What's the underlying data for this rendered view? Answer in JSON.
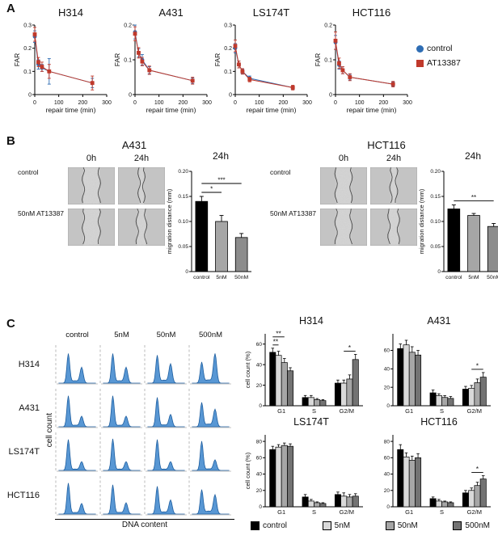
{
  "figure": {
    "panel_a_label": "A",
    "panel_b_label": "B",
    "panel_c_label": "C"
  },
  "panel_a": {
    "xlabel": "repair time (min)",
    "ylabel": "FAR",
    "x": [
      0,
      15,
      30,
      60,
      240
    ],
    "xlim": [
      0,
      300
    ],
    "xticks": [
      0,
      100,
      200,
      300
    ],
    "legend": [
      {
        "label": "control",
        "color": "#2e6db4",
        "marker": "circle"
      },
      {
        "label": "AT13387",
        "color": "#c0392b",
        "marker": "square"
      }
    ],
    "charts": [
      {
        "title": "H314",
        "ylim": [
          0,
          0.3
        ],
        "yticks": [
          0,
          0.1,
          0.2,
          0.3
        ],
        "ytick_labels": [
          "0",
          "0.1",
          "0.2",
          "0.3"
        ],
        "series": [
          {
            "name": "control",
            "values": [
              0.25,
              0.13,
              0.115,
              0.1,
              0.05
            ],
            "err": [
              0.025,
              0.02,
              0.015,
              0.055,
              0.02
            ]
          },
          {
            "name": "AT13387",
            "values": [
              0.26,
              0.14,
              0.12,
              0.1,
              0.05
            ],
            "err": [
              0.03,
              0.02,
              0.02,
              0.03,
              0.03
            ]
          }
        ]
      },
      {
        "title": "A431",
        "ylim": [
          0,
          0.2
        ],
        "yticks": [
          0,
          0.1,
          0.2
        ],
        "ytick_labels": [
          "0",
          "0.1",
          "0.2"
        ],
        "series": [
          {
            "name": "control",
            "values": [
              0.18,
              0.12,
              0.1,
              0.07,
              0.04
            ],
            "err": [
              0.02,
              0.012,
              0.015,
              0.01,
              0.008
            ]
          },
          {
            "name": "AT13387",
            "values": [
              0.175,
              0.12,
              0.095,
              0.07,
              0.04
            ],
            "err": [
              0.02,
              0.015,
              0.012,
              0.012,
              0.01
            ]
          }
        ]
      },
      {
        "title": "LS174T",
        "ylim": [
          0,
          0.3
        ],
        "yticks": [
          0,
          0.1,
          0.2,
          0.3
        ],
        "ytick_labels": [
          "0",
          "0.1",
          "0.2",
          "0.3"
        ],
        "series": [
          {
            "name": "control",
            "values": [
              0.2,
              0.13,
              0.1,
              0.07,
              0.03
            ],
            "err": [
              0.02,
              0.015,
              0.01,
              0.01,
              0.008
            ]
          },
          {
            "name": "AT13387",
            "values": [
              0.21,
              0.13,
              0.1,
              0.065,
              0.03
            ],
            "err": [
              0.025,
              0.015,
              0.012,
              0.01,
              0.01
            ]
          }
        ]
      },
      {
        "title": "HCT116",
        "ylim": [
          0,
          0.2
        ],
        "yticks": [
          0,
          0.1,
          0.2
        ],
        "ytick_labels": [
          "0",
          "0.1",
          "0.2"
        ],
        "series": [
          {
            "name": "control",
            "values": [
              0.15,
              0.085,
              0.07,
              0.05,
              0.03
            ],
            "err": [
              0.02,
              0.012,
              0.01,
              0.008,
              0.006
            ]
          },
          {
            "name": "AT13387",
            "values": [
              0.155,
              0.09,
              0.07,
              0.05,
              0.03
            ],
            "err": [
              0.025,
              0.015,
              0.01,
              0.01,
              0.008
            ]
          }
        ]
      }
    ]
  },
  "panel_b": {
    "bar_colors": [
      "#000000",
      "#a6a6a6",
      "#8c8c8c"
    ],
    "groups": [
      {
        "title": "A431",
        "col_labels": [
          "0h",
          "24h"
        ],
        "row_labels": [
          "control",
          "50nM AT13387"
        ],
        "images": [
          {
            "name": "control-0h",
            "gap": 0.34,
            "seed": 1
          },
          {
            "name": "control-24h",
            "gap": 0.1,
            "seed": 2
          },
          {
            "name": "50nM-0h",
            "gap": 0.34,
            "seed": 3
          },
          {
            "name": "50nM-24h",
            "gap": 0.18,
            "seed": 4
          }
        ],
        "chart": {
          "title": "24h",
          "ylabel": "migration distance (mm)",
          "categories": [
            "control",
            "5nM",
            "50nM"
          ],
          "values": [
            0.14,
            0.1,
            0.068
          ],
          "errors": [
            0.01,
            0.012,
            0.008
          ],
          "ylim": [
            0,
            0.2
          ],
          "yticks": [
            0,
            0.05,
            0.1,
            0.15,
            0.2
          ],
          "ytick_labels": [
            "0",
            "0.05",
            "0.10",
            "0.15",
            "0.20"
          ],
          "sig": [
            {
              "from": 0,
              "to": 1,
              "label": "*"
            },
            {
              "from": 0,
              "to": 2,
              "label": "***"
            }
          ]
        }
      },
      {
        "title": "HCT116",
        "col_labels": [
          "0h",
          "24h"
        ],
        "row_labels": [
          "control",
          "50nM AT13387"
        ],
        "images": [
          {
            "name": "control-0h",
            "gap": 0.32,
            "seed": 5
          },
          {
            "name": "control-24h",
            "gap": 0.12,
            "seed": 6
          },
          {
            "name": "50nM-0h",
            "gap": 0.32,
            "seed": 7
          },
          {
            "name": "50nM-24h",
            "gap": 0.2,
            "seed": 8
          }
        ],
        "chart": {
          "title": "24h",
          "ylabel": "migration distance (mm)",
          "categories": [
            "control",
            "5nM",
            "50nM"
          ],
          "values": [
            0.125,
            0.112,
            0.09
          ],
          "errors": [
            0.008,
            0.004,
            0.006
          ],
          "ylim": [
            0,
            0.2
          ],
          "yticks": [
            0,
            0.05,
            0.1,
            0.15,
            0.2
          ],
          "ytick_labels": [
            "0",
            "0.05",
            "0.10",
            "0.15",
            "0.20"
          ],
          "sig": [
            {
              "from": 0,
              "to": 2,
              "label": "**"
            }
          ]
        }
      }
    ]
  },
  "panel_c": {
    "flow": {
      "col_labels": [
        "control",
        "5nM",
        "50nM",
        "500nM"
      ],
      "row_labels": [
        "H314",
        "A431",
        "LS174T",
        "HCT116"
      ],
      "ylabel": "cell count",
      "xlabel": "DNA content",
      "hist_fill": "#4f91d2",
      "hist_stroke": "#1f5fa0",
      "cells": [
        [
          {
            "g1": 0.85,
            "g2": 0.45
          },
          {
            "g1": 0.85,
            "g2": 0.45
          },
          {
            "g1": 0.8,
            "g2": 0.55
          },
          {
            "g1": 0.6,
            "g2": 0.85
          }
        ],
        [
          {
            "g1": 0.9,
            "g2": 0.3
          },
          {
            "g1": 0.9,
            "g2": 0.3
          },
          {
            "g1": 0.85,
            "g2": 0.35
          },
          {
            "g1": 0.7,
            "g2": 0.5
          }
        ],
        [
          {
            "g1": 0.9,
            "g2": 0.25
          },
          {
            "g1": 0.92,
            "g2": 0.25
          },
          {
            "g1": 0.9,
            "g2": 0.25
          },
          {
            "g1": 0.85,
            "g2": 0.3
          }
        ],
        [
          {
            "g1": 0.9,
            "g2": 0.3
          },
          {
            "g1": 0.85,
            "g2": 0.32
          },
          {
            "g1": 0.8,
            "g2": 0.4
          },
          {
            "g1": 0.7,
            "g2": 0.55
          }
        ]
      ]
    },
    "legend": [
      {
        "label": "control",
        "color": "#000000"
      },
      {
        "label": "5nM",
        "color": "#d9d9d9"
      },
      {
        "label": "50nM",
        "color": "#a6a6a6"
      },
      {
        "label": "500nM",
        "color": "#737373"
      }
    ],
    "charts": [
      {
        "title": "H314",
        "ylabel": "cell count (%)",
        "ylim": [
          0,
          70
        ],
        "yticks": [
          0,
          20,
          40,
          60
        ],
        "categories": [
          "G1",
          "S",
          "G2/M"
        ],
        "series_values": [
          [
            52,
            49,
            42,
            34
          ],
          [
            8,
            8,
            6,
            5
          ],
          [
            22,
            22,
            26,
            45
          ]
        ],
        "errors": [
          [
            4,
            4,
            4,
            3
          ],
          [
            2,
            2,
            1,
            1
          ],
          [
            3,
            3,
            4,
            5
          ]
        ],
        "sig": [
          {
            "group": 0,
            "from": 0,
            "to": 1,
            "label": "**"
          },
          {
            "group": 0,
            "from": 0,
            "to": 2,
            "label": "**"
          },
          {
            "group": 2,
            "from": 1,
            "to": 3,
            "label": "*"
          }
        ]
      },
      {
        "title": "A431",
        "ylim": [
          0,
          78
        ],
        "yticks": [
          0,
          20,
          40,
          60
        ],
        "categories": [
          "G1",
          "S",
          "G2/M"
        ],
        "series_values": [
          [
            62,
            66,
            58,
            55
          ],
          [
            14,
            11,
            9,
            8
          ],
          [
            18,
            19,
            25,
            31
          ]
        ],
        "errors": [
          [
            5,
            5,
            6,
            5
          ],
          [
            3,
            2,
            2,
            2
          ],
          [
            3,
            3,
            4,
            5
          ]
        ],
        "sig": [
          {
            "group": 2,
            "from": 1,
            "to": 3,
            "label": "*"
          }
        ]
      },
      {
        "title": "LS174T",
        "ylabel": "cell count (%)",
        "ylim": [
          0,
          88
        ],
        "yticks": [
          0,
          20,
          40,
          60,
          80
        ],
        "categories": [
          "G1",
          "S",
          "G2/M"
        ],
        "series_values": [
          [
            70,
            73,
            75,
            74
          ],
          [
            12,
            7,
            5,
            4
          ],
          [
            15,
            13,
            12,
            13
          ]
        ],
        "errors": [
          [
            4,
            3,
            3,
            3
          ],
          [
            3,
            2,
            1,
            1
          ],
          [
            3,
            4,
            3,
            3
          ]
        ],
        "sig": []
      },
      {
        "title": "HCT116",
        "ylim": [
          0,
          88
        ],
        "yticks": [
          0,
          20,
          40,
          60,
          80
        ],
        "categories": [
          "G1",
          "S",
          "G2/M"
        ],
        "series_values": [
          [
            70,
            61,
            57,
            60
          ],
          [
            10,
            7,
            6,
            5
          ],
          [
            17,
            20,
            26,
            34
          ]
        ],
        "errors": [
          [
            6,
            5,
            5,
            5
          ],
          [
            2,
            2,
            1,
            1
          ],
          [
            3,
            3,
            4,
            4
          ]
        ],
        "sig": [
          {
            "group": 2,
            "from": 1,
            "to": 3,
            "label": "*"
          }
        ]
      }
    ]
  }
}
